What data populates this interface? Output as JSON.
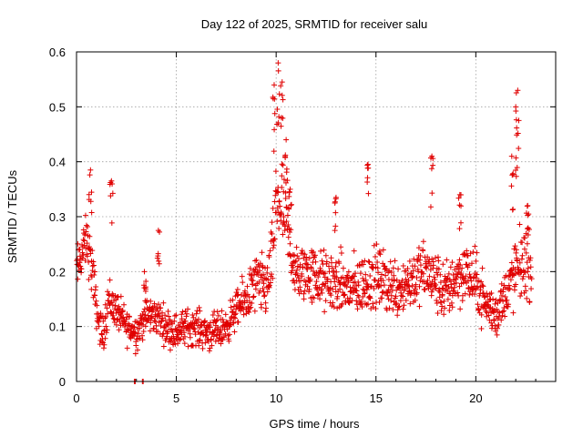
{
  "chart_data": {
    "type": "scatter",
    "title": "Day 122 of 2025, SRMTID for receiver salu",
    "xlabel": "GPS time / hours",
    "ylabel": "SRMTID / TECUs",
    "xlim": [
      0,
      24
    ],
    "ylim": [
      0,
      0.6
    ],
    "x_ticks": [
      0,
      5,
      10,
      15,
      20
    ],
    "x_tick_labels": [
      "0",
      "5",
      "10",
      "15",
      "20"
    ],
    "y_ticks": [
      0,
      0.1,
      0.2,
      0.3,
      0.4,
      0.5,
      0.6
    ],
    "y_tick_labels": [
      "0",
      "0.1",
      "0.2",
      "0.3",
      "0.4",
      "0.5",
      "0.6"
    ],
    "grid": true,
    "marker": "plus",
    "color": "#e00000",
    "series": [
      {
        "name": "SRMTID",
        "trend": [
          [
            0.0,
            0.2,
            0.04
          ],
          [
            0.5,
            0.26,
            0.04
          ],
          [
            0.8,
            0.2,
            0.05
          ],
          [
            1.0,
            0.13,
            0.03
          ],
          [
            1.3,
            0.08,
            0.03
          ],
          [
            1.6,
            0.15,
            0.04
          ],
          [
            2.0,
            0.13,
            0.03
          ],
          [
            2.5,
            0.1,
            0.03
          ],
          [
            3.0,
            0.09,
            0.03
          ],
          [
            3.5,
            0.12,
            0.03
          ],
          [
            4.0,
            0.12,
            0.03
          ],
          [
            4.5,
            0.1,
            0.03
          ],
          [
            5.0,
            0.09,
            0.03
          ],
          [
            5.5,
            0.1,
            0.03
          ],
          [
            6.0,
            0.1,
            0.03
          ],
          [
            6.5,
            0.09,
            0.03
          ],
          [
            7.0,
            0.09,
            0.03
          ],
          [
            7.5,
            0.1,
            0.03
          ],
          [
            8.0,
            0.13,
            0.03
          ],
          [
            8.5,
            0.15,
            0.04
          ],
          [
            9.0,
            0.18,
            0.05
          ],
          [
            9.5,
            0.17,
            0.05
          ],
          [
            9.8,
            0.22,
            0.06
          ],
          [
            10.0,
            0.33,
            0.07
          ],
          [
            10.3,
            0.32,
            0.08
          ],
          [
            10.7,
            0.25,
            0.06
          ],
          [
            11.0,
            0.19,
            0.05
          ],
          [
            11.5,
            0.2,
            0.05
          ],
          [
            12.0,
            0.19,
            0.05
          ],
          [
            12.5,
            0.18,
            0.05
          ],
          [
            13.0,
            0.18,
            0.05
          ],
          [
            13.5,
            0.17,
            0.05
          ],
          [
            14.0,
            0.17,
            0.05
          ],
          [
            14.5,
            0.18,
            0.05
          ],
          [
            15.0,
            0.19,
            0.05
          ],
          [
            15.5,
            0.18,
            0.05
          ],
          [
            16.0,
            0.17,
            0.05
          ],
          [
            16.5,
            0.18,
            0.05
          ],
          [
            17.0,
            0.19,
            0.05
          ],
          [
            17.5,
            0.2,
            0.05
          ],
          [
            18.0,
            0.18,
            0.05
          ],
          [
            18.5,
            0.16,
            0.05
          ],
          [
            19.0,
            0.19,
            0.05
          ],
          [
            19.5,
            0.2,
            0.05
          ],
          [
            20.0,
            0.18,
            0.05
          ],
          [
            20.5,
            0.14,
            0.04
          ],
          [
            21.0,
            0.12,
            0.04
          ],
          [
            21.5,
            0.16,
            0.04
          ],
          [
            22.0,
            0.2,
            0.06
          ],
          [
            22.5,
            0.22,
            0.06
          ],
          [
            22.8,
            0.2,
            0.05
          ]
        ],
        "peaks": [
          [
            0.7,
            0.385
          ],
          [
            1.75,
            0.365
          ],
          [
            3.4,
            0.2
          ],
          [
            4.1,
            0.275
          ],
          [
            9.9,
            0.54
          ],
          [
            10.1,
            0.58
          ],
          [
            10.3,
            0.545
          ],
          [
            10.5,
            0.44
          ],
          [
            10.7,
            0.35
          ],
          [
            13.0,
            0.335
          ],
          [
            14.6,
            0.395
          ],
          [
            17.8,
            0.41
          ],
          [
            19.2,
            0.34
          ],
          [
            21.8,
            0.41
          ],
          [
            22.0,
            0.5
          ],
          [
            22.1,
            0.53
          ],
          [
            22.6,
            0.32
          ]
        ],
        "zeros": [
          2.9,
          3.3
        ]
      }
    ]
  }
}
